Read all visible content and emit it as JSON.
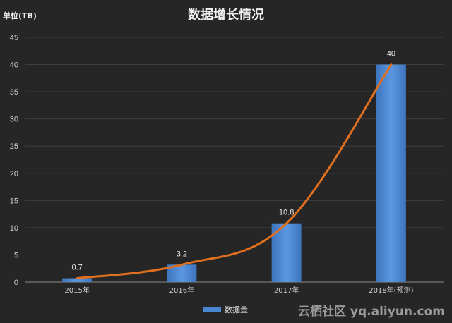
{
  "chart_data": {
    "type": "bar",
    "title": "数据增长情况",
    "unit_label": "单位(TB)",
    "categories": [
      "2015年",
      "2016年",
      "2017年",
      "2018年(预测)"
    ],
    "series": [
      {
        "name": "数据量",
        "type": "bar",
        "values": [
          0.7,
          3.2,
          10.8,
          40
        ],
        "color": "#4a86d4"
      },
      {
        "type": "line",
        "values": [
          0.7,
          3.2,
          10.8,
          40
        ],
        "color": "#e07020"
      }
    ],
    "data_labels": [
      "0.7",
      "3.2",
      "10.8",
      "40"
    ],
    "yticks": [
      "0",
      "5",
      "10",
      "15",
      "20",
      "25",
      "30",
      "35",
      "40",
      "45"
    ],
    "ylim": [
      0,
      45
    ],
    "grid": true,
    "legend_position": "bottom"
  },
  "watermark": "云栖社区 yq.aliyun.com"
}
